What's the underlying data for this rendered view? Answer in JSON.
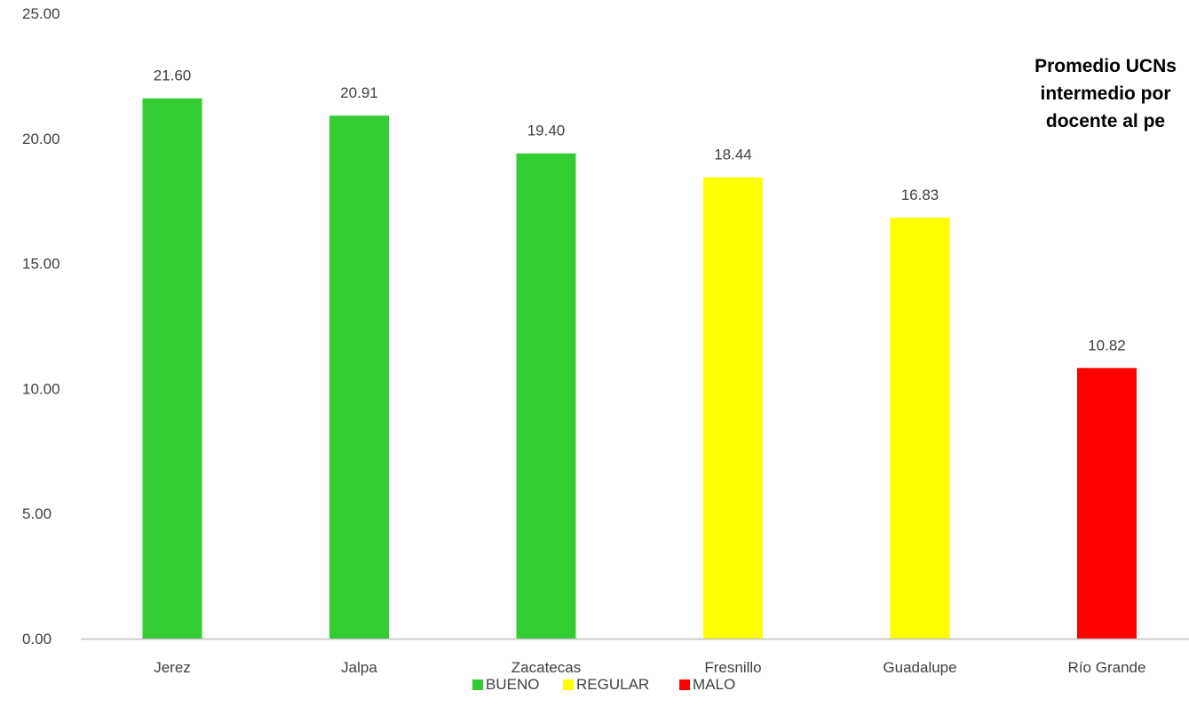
{
  "chart_data": {
    "type": "bar",
    "title_lines": [
      "Promedio UCNs",
      "intermedio por",
      "docente al pe"
    ],
    "categories": [
      "Jerez",
      "Jalpa",
      "Zacatecas",
      "Fresnillo",
      "Guadalupe",
      "Río Grande"
    ],
    "values": [
      21.6,
      20.91,
      19.4,
      18.44,
      16.83,
      10.82
    ],
    "value_labels": [
      "21.60",
      "20.91",
      "19.40",
      "18.44",
      "16.83",
      "10.82"
    ],
    "bar_status": [
      "BUENO",
      "BUENO",
      "BUENO",
      "REGULAR",
      "REGULAR",
      "MALO"
    ],
    "ylim": [
      0,
      25
    ],
    "y_ticks": [
      0,
      5,
      10,
      15,
      20,
      25
    ],
    "y_tick_labels": [
      "0.00",
      "5.00",
      "10.00",
      "15.00",
      "20.00",
      "25.00"
    ],
    "grid": false,
    "legend": {
      "position": "bottom",
      "entries": [
        {
          "label": "BUENO",
          "color": "#33CC33"
        },
        {
          "label": "REGULAR",
          "color": "#FFFF00"
        },
        {
          "label": "MALO",
          "color": "#FF0000"
        }
      ]
    },
    "colors": {
      "BUENO": "#33CC33",
      "REGULAR": "#FFFF00",
      "MALO": "#FF0000",
      "axis": "#BFBFBF"
    }
  }
}
